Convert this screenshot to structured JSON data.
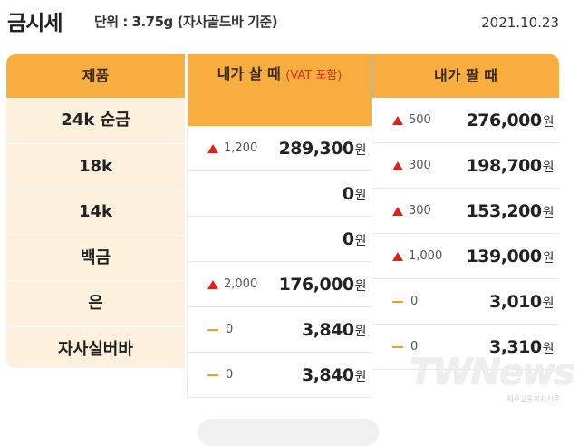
{
  "header": {
    "title": "금시세",
    "unit": "단위 : 3.75g (자사골드바 기준)",
    "date": "2021.10.23"
  },
  "columns": {
    "product": "제품",
    "buy": "내가 살 때",
    "buy_note": "(VAT 포함)",
    "sell": "내가 팔 때"
  },
  "products": [
    "24k 순금",
    "18k",
    "14k",
    "백금",
    "은",
    "자사실버바"
  ],
  "buy_prices": [
    {
      "trend": "up",
      "change": "1,200",
      "price": "289,300",
      "unit": "원"
    },
    {
      "trend": "none",
      "change": "",
      "price": "0",
      "unit": "원"
    },
    {
      "trend": "none",
      "change": "",
      "price": "0",
      "unit": "원"
    },
    {
      "trend": "up",
      "change": "2,000",
      "price": "176,000",
      "unit": "원"
    },
    {
      "trend": "flat",
      "change": "0",
      "price": "3,840",
      "unit": "원"
    },
    {
      "trend": "flat",
      "change": "0",
      "price": "3,840",
      "unit": "원"
    }
  ],
  "sell_prices": [
    {
      "trend": "up",
      "change": "500",
      "price": "276,000",
      "unit": "원"
    },
    {
      "trend": "up",
      "change": "300",
      "price": "198,700",
      "unit": "원"
    },
    {
      "trend": "up",
      "change": "300",
      "price": "153,200",
      "unit": "원"
    },
    {
      "trend": "up",
      "change": "1,000",
      "price": "139,000",
      "unit": "원"
    },
    {
      "trend": "flat",
      "change": "0",
      "price": "3,010",
      "unit": "원"
    },
    {
      "trend": "flat",
      "change": "0",
      "price": "3,310",
      "unit": "원"
    }
  ],
  "watermark": {
    "logo": "TWNews",
    "sub": "제주교통복지신문"
  },
  "colors": {
    "header_orange": "#f8ae3f",
    "product_bg": "#fdf0dc",
    "up_red": "#e0201a",
    "flat_orange": "#f0a030"
  }
}
